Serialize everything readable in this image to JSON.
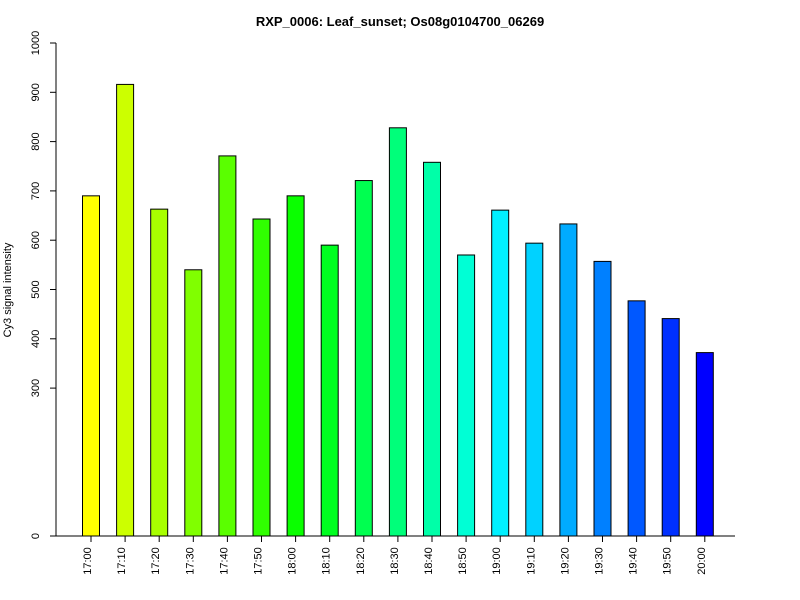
{
  "chart_data": {
    "type": "bar",
    "title": "RXP_0006: Leaf_sunset; Os08g0104700_06269",
    "xlabel": "",
    "ylabel": "Cy3 signal intensity",
    "categories": [
      "17:00",
      "17:10",
      "17:20",
      "17:30",
      "17:40",
      "17:50",
      "18:00",
      "18:10",
      "18:20",
      "18:30",
      "18:40",
      "18:50",
      "19:00",
      "19:10",
      "19:20",
      "19:30",
      "19:40",
      "19:50",
      "20:00"
    ],
    "values": [
      690,
      916,
      663,
      540,
      771,
      643,
      690,
      590,
      721,
      828,
      758,
      570,
      661,
      594,
      633,
      557,
      477,
      441,
      372
    ],
    "colors": [
      "#FFFF00",
      "#CCFF00",
      "#A8FF00",
      "#80FF00",
      "#5AFF00",
      "#30FF00",
      "#0AFF00",
      "#00FF20",
      "#00FF50",
      "#00FF7A",
      "#00FFA8",
      "#00FFD5",
      "#00F0FF",
      "#00D2FF",
      "#00ABFF",
      "#0080FF",
      "#0058FF",
      "#0030FF",
      "#0000FF"
    ],
    "yticks": [
      0,
      300,
      400,
      500,
      600,
      700,
      800,
      900,
      1000
    ],
    "ylim": [
      0,
      1000
    ],
    "grid": false,
    "legend": "none"
  }
}
